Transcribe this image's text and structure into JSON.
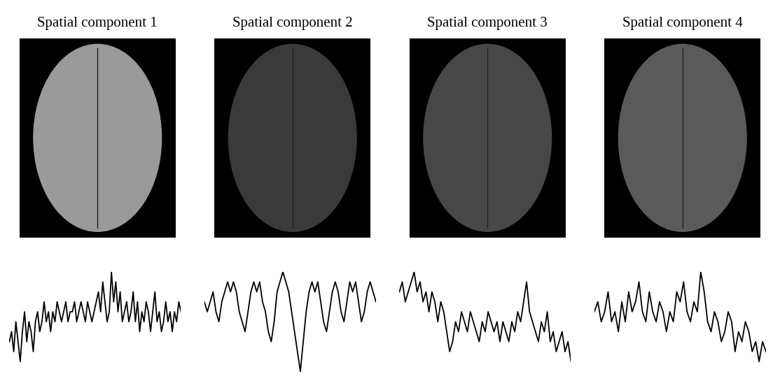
{
  "chart_data": [
    {
      "type": "line",
      "title": "Spatial component 1",
      "color": "#000000",
      "tick_labels": false,
      "ylim": [
        0,
        10
      ],
      "values": [
        3,
        4,
        2,
        5,
        3,
        1,
        4,
        6,
        3,
        5,
        4,
        2,
        5,
        6,
        4,
        5,
        7,
        5,
        6,
        4,
        6,
        5,
        7,
        6,
        5,
        6,
        7,
        5,
        6,
        6,
        7,
        5,
        6,
        7,
        6,
        5,
        7,
        6,
        5,
        6,
        7,
        8,
        6,
        9,
        7,
        5,
        6,
        10,
        7,
        9,
        6,
        8,
        5,
        6,
        7,
        5,
        6,
        8,
        5,
        7,
        4,
        6,
        5,
        7,
        6,
        4,
        6,
        8,
        5,
        6,
        4,
        5,
        7,
        5,
        6,
        4,
        6,
        5,
        7,
        6
      ]
    },
    {
      "type": "line",
      "title": "Spatial component 2",
      "color": "#000000",
      "tick_labels": false,
      "ylim": [
        0,
        10
      ],
      "values": [
        7,
        6,
        7,
        8,
        6,
        5,
        7,
        8,
        9,
        8,
        9,
        8,
        6,
        5,
        4,
        6,
        8,
        9,
        8,
        9,
        7,
        6,
        4,
        3,
        5,
        8,
        9,
        10,
        9,
        8,
        6,
        4,
        2,
        0,
        3,
        6,
        8,
        9,
        8,
        9,
        7,
        5,
        4,
        6,
        8,
        9,
        8,
        6,
        5,
        7,
        9,
        8,
        9,
        7,
        5,
        6,
        8,
        9,
        8,
        7
      ]
    },
    {
      "type": "line",
      "title": "Spatial component 3",
      "color": "#000000",
      "tick_labels": false,
      "ylim": [
        0,
        10
      ],
      "values": [
        8,
        9,
        7,
        8,
        9,
        10,
        8,
        9,
        7,
        8,
        6,
        8,
        7,
        5,
        7,
        6,
        4,
        2,
        3,
        5,
        4,
        6,
        5,
        4,
        6,
        5,
        4,
        3,
        5,
        4,
        6,
        5,
        4,
        5,
        3,
        5,
        4,
        3,
        5,
        4,
        6,
        5,
        7,
        9,
        6,
        5,
        4,
        3,
        5,
        4,
        6,
        3,
        4,
        2,
        3,
        4,
        2,
        3,
        1
      ]
    },
    {
      "type": "line",
      "title": "Spatial component 4",
      "color": "#000000",
      "tick_labels": false,
      "ylim": [
        0,
        10
      ],
      "values": [
        6,
        7,
        5,
        6,
        8,
        5,
        6,
        4,
        7,
        5,
        8,
        6,
        7,
        9,
        6,
        5,
        8,
        6,
        5,
        7,
        6,
        4,
        6,
        5,
        8,
        7,
        9,
        6,
        5,
        7,
        6,
        10,
        8,
        5,
        4,
        6,
        5,
        3,
        4,
        6,
        5,
        2,
        4,
        3,
        5,
        4,
        2,
        3,
        1,
        3,
        2
      ]
    }
  ]
}
